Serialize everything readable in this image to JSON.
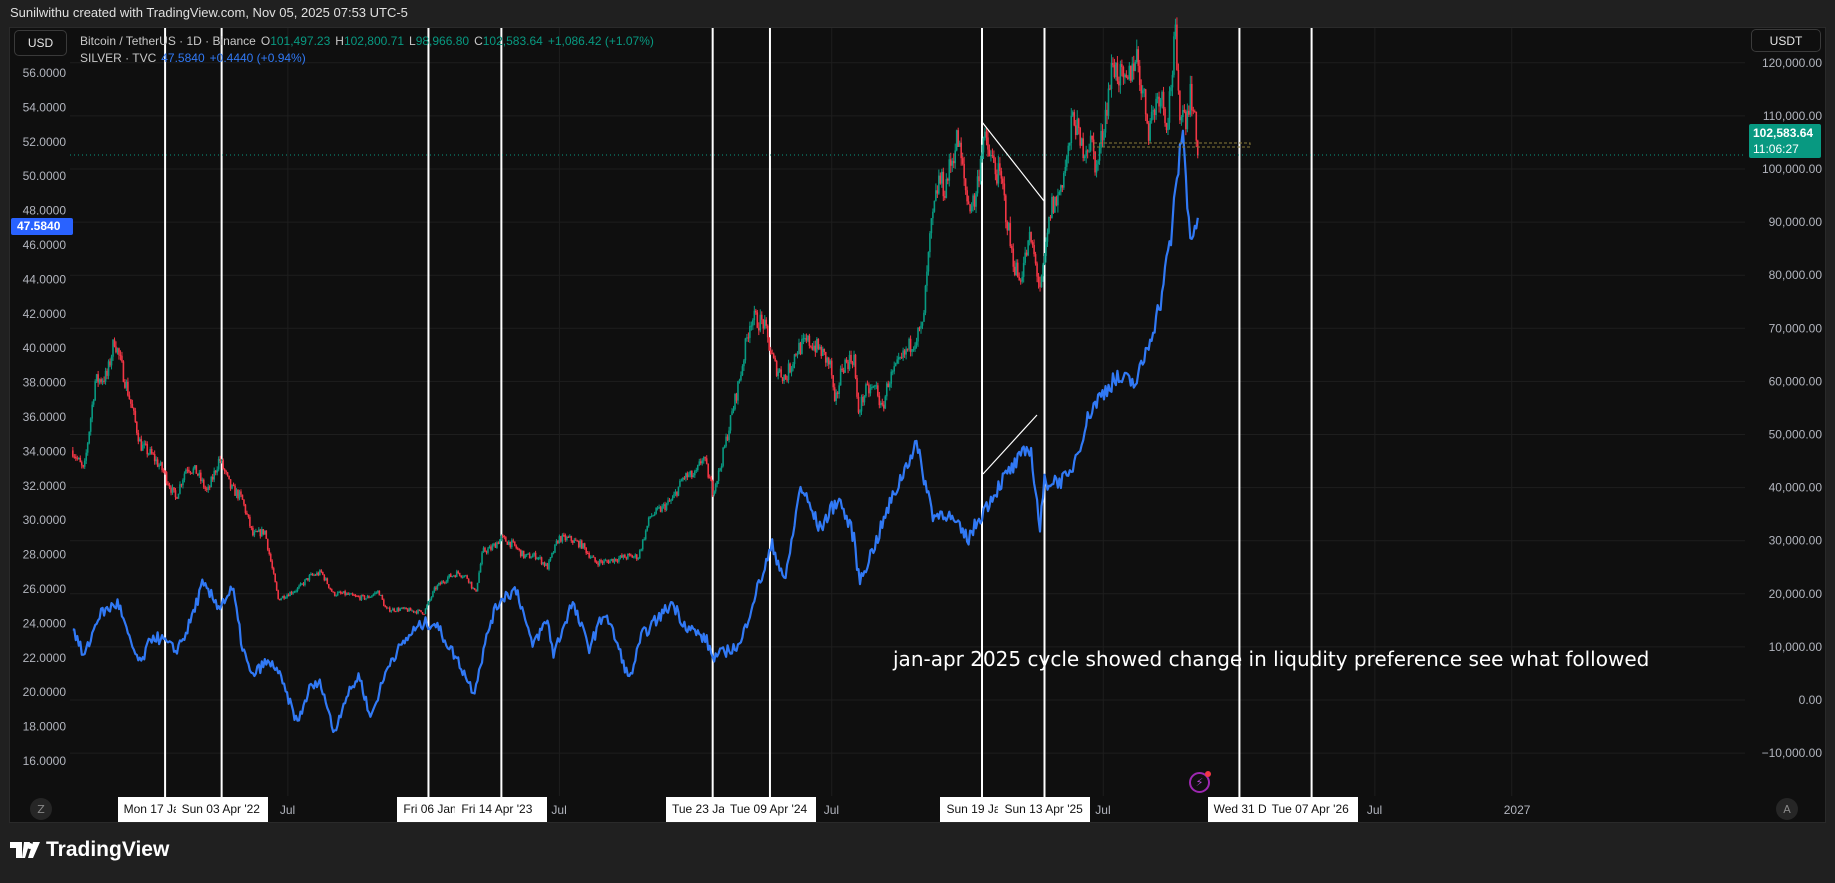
{
  "header": {
    "caption": "Sunilwithu created with TradingView.com, Nov 05, 2025 07:53 UTC-5"
  },
  "left_scale": {
    "currency": "USD"
  },
  "right_scale": {
    "currency": "USDT"
  },
  "legend": {
    "btc": {
      "name": "Bitcoin / TetherUS · 1D · Binance",
      "o_label": "O",
      "o": "101,497.23",
      "h_label": "H",
      "h": "102,800.71",
      "l_label": "L",
      "l": "98,966.80",
      "c_label": "C",
      "c": "102,583.64",
      "change": "+1,086.42 (+1.07%)"
    },
    "silver": {
      "name": "SILVER · TVC",
      "value": "47.5840",
      "change": "+0.4440 (+0.94%)"
    }
  },
  "price_labels": {
    "btc_last": "102,583.64",
    "btc_countdown": "11:06:27",
    "silver_last": "47.5840"
  },
  "annotation": "jan-apr 2025 cycle showed change in liqudity preference see what followed",
  "time_axis": {
    "marker_labels": [
      "Mon 17 Ja",
      "Sun 03 Apr '22",
      "Fri 06 Jan '2",
      "Fri 14 Apr '23",
      "Tue 23 Ja",
      "Tue 09 Apr '24",
      "Sun 19 Jar",
      "Sun 13 Apr '25",
      "Wed 31 Dec",
      "Tue 07 Apr '26"
    ],
    "ticks": [
      "Jul",
      "Jul",
      "Jul",
      "Jul",
      "Jul",
      "2027"
    ]
  },
  "buttons": {
    "auto_scale": "A",
    "timezone": "Z"
  },
  "footer": {
    "brand": "TradingView"
  },
  "colors": {
    "up": "#089981",
    "down": "#f23645",
    "silver": "#3179f5",
    "marker_lines": "#ffffff",
    "last_price_badge": "#089981",
    "silver_badge": "#2962ff",
    "event_icon": "#9c27b0"
  },
  "chart_data": [
    {
      "type": "candlestick+line",
      "x_axis": "date",
      "left_axis": {
        "series": "SILVER · TVC",
        "unit": "USD",
        "ticks": [
          "56.0000",
          "54.0000",
          "52.0000",
          "50.0000",
          "48.0000",
          "46.0000",
          "44.0000",
          "42.0000",
          "40.0000",
          "38.0000",
          "36.0000",
          "34.0000",
          "32.0000",
          "30.0000",
          "28.0000",
          "26.0000",
          "24.0000",
          "22.0000",
          "20.0000",
          "18.0000",
          "16.0000"
        ],
        "range": [
          14.5,
          57.5
        ]
      },
      "right_axis": {
        "series": "Bitcoin / TetherUS",
        "unit": "USDT",
        "ticks": [
          "120,000.00",
          "110,000.00",
          "100,000.00",
          "90,000.00",
          "80,000.00",
          "70,000.00",
          "60,000.00",
          "50,000.00",
          "40,000.00",
          "30,000.00",
          "20,000.00",
          "10,000.00",
          "0.00",
          "−10,000.00"
        ],
        "range": [
          -17000,
          126000
        ]
      },
      "grid": true,
      "marker_dates": [
        "2022-01-17",
        "2022-04-03",
        "2023-01-06",
        "2023-04-14",
        "2024-01-23",
        "2024-04-09",
        "2025-01-19",
        "2025-04-13",
        "2025-12-31",
        "2026-04-07"
      ],
      "tick_dates": [
        "2022-07-01",
        "2023-07-01",
        "2024-07-01",
        "2025-07-01",
        "2026-07-01",
        "2027-01-01"
      ],
      "btc": [
        [
          "2021-09-15",
          47000
        ],
        [
          "2021-09-30",
          43000
        ],
        [
          "2021-10-15",
          60000
        ],
        [
          "2021-10-31",
          61000
        ],
        [
          "2021-11-10",
          68000
        ],
        [
          "2021-11-30",
          57000
        ],
        [
          "2021-12-15",
          48000
        ],
        [
          "2021-12-31",
          46000
        ],
        [
          "2022-01-15",
          43000
        ],
        [
          "2022-01-31",
          38000
        ],
        [
          "2022-02-15",
          44000
        ],
        [
          "2022-02-28",
          43000
        ],
        [
          "2022-03-15",
          39000
        ],
        [
          "2022-03-31",
          45500
        ],
        [
          "2022-04-15",
          40000
        ],
        [
          "2022-04-30",
          38000
        ],
        [
          "2022-05-15",
          31000
        ],
        [
          "2022-05-31",
          31800
        ],
        [
          "2022-06-18",
          19000
        ],
        [
          "2022-06-30",
          19900
        ],
        [
          "2022-07-15",
          21000
        ],
        [
          "2022-07-31",
          23300
        ],
        [
          "2022-08-15",
          24000
        ],
        [
          "2022-08-31",
          20000
        ],
        [
          "2022-09-15",
          20000
        ],
        [
          "2022-09-30",
          19400
        ],
        [
          "2022-10-15",
          19200
        ],
        [
          "2022-10-31",
          20500
        ],
        [
          "2022-11-10",
          17000
        ],
        [
          "2022-11-30",
          17100
        ],
        [
          "2022-12-31",
          16500
        ],
        [
          "2023-01-15",
          21000
        ],
        [
          "2023-01-31",
          23000
        ],
        [
          "2023-02-15",
          24000
        ],
        [
          "2023-02-28",
          23000
        ],
        [
          "2023-03-10",
          20000
        ],
        [
          "2023-03-20",
          28000
        ],
        [
          "2023-03-31",
          28500
        ],
        [
          "2023-04-14",
          30500
        ],
        [
          "2023-04-30",
          29200
        ],
        [
          "2023-05-15",
          27000
        ],
        [
          "2023-05-31",
          27200
        ],
        [
          "2023-06-15",
          25000
        ],
        [
          "2023-06-30",
          30500
        ],
        [
          "2023-07-15",
          30300
        ],
        [
          "2023-07-31",
          29200
        ],
        [
          "2023-08-18",
          26000
        ],
        [
          "2023-08-31",
          26000
        ],
        [
          "2023-09-15",
          26600
        ],
        [
          "2023-09-30",
          27000
        ],
        [
          "2023-10-15",
          27000
        ],
        [
          "2023-10-31",
          34600
        ],
        [
          "2023-11-15",
          36000
        ],
        [
          "2023-11-30",
          37700
        ],
        [
          "2023-12-15",
          42000
        ],
        [
          "2023-12-31",
          42300
        ],
        [
          "2024-01-10",
          46000
        ],
        [
          "2024-01-23",
          39500
        ],
        [
          "2024-01-31",
          42600
        ],
        [
          "2024-02-15",
          52000
        ],
        [
          "2024-02-29",
          61000
        ],
        [
          "2024-03-14",
          72000
        ],
        [
          "2024-03-31",
          71000
        ],
        [
          "2024-04-15",
          63000
        ],
        [
          "2024-04-30",
          60600
        ],
        [
          "2024-05-15",
          66000
        ],
        [
          "2024-05-31",
          67500
        ],
        [
          "2024-06-15",
          66000
        ],
        [
          "2024-06-30",
          62700
        ],
        [
          "2024-07-05",
          55000
        ],
        [
          "2024-07-15",
          63000
        ],
        [
          "2024-07-31",
          64600
        ],
        [
          "2024-08-05",
          54000
        ],
        [
          "2024-08-15",
          58000
        ],
        [
          "2024-08-31",
          58900
        ],
        [
          "2024-09-06",
          54000
        ],
        [
          "2024-09-15",
          60000
        ],
        [
          "2024-09-30",
          63300
        ],
        [
          "2024-10-15",
          67000
        ],
        [
          "2024-10-31",
          70000
        ],
        [
          "2024-11-11",
          88000
        ],
        [
          "2024-11-22",
          98000
        ],
        [
          "2024-11-30",
          96400
        ],
        [
          "2024-12-17",
          106000
        ],
        [
          "2024-12-31",
          93400
        ],
        [
          "2025-01-10",
          94000
        ],
        [
          "2025-01-20",
          106000
        ],
        [
          "2025-01-31",
          102000
        ],
        [
          "2025-02-15",
          97000
        ],
        [
          "2025-02-28",
          84000
        ],
        [
          "2025-03-10",
          79000
        ],
        [
          "2025-03-25",
          87000
        ],
        [
          "2025-04-08",
          77000
        ],
        [
          "2025-04-22",
          93000
        ],
        [
          "2025-04-30",
          94000
        ],
        [
          "2025-05-15",
          103000
        ],
        [
          "2025-05-22",
          111000
        ],
        [
          "2025-05-31",
          104000
        ],
        [
          "2025-06-15",
          105000
        ],
        [
          "2025-06-22",
          100000
        ],
        [
          "2025-06-30",
          107000
        ],
        [
          "2025-07-14",
          120000
        ],
        [
          "2025-07-31",
          115000
        ],
        [
          "2025-08-14",
          122000
        ],
        [
          "2025-08-31",
          108000
        ],
        [
          "2025-09-15",
          115000
        ],
        [
          "2025-09-25",
          109000
        ],
        [
          "2025-10-06",
          125000
        ],
        [
          "2025-10-10",
          112000
        ],
        [
          "2025-10-20",
          110000
        ],
        [
          "2025-10-27",
          115000
        ],
        [
          "2025-11-05",
          102583.64
        ]
      ],
      "silver": [
        [
          "2021-09-15",
          23.8
        ],
        [
          "2021-09-30",
          22.0
        ],
        [
          "2021-10-20",
          24.5
        ],
        [
          "2021-11-15",
          25.2
        ],
        [
          "2021-11-30",
          23.0
        ],
        [
          "2021-12-15",
          21.6
        ],
        [
          "2021-12-31",
          23.3
        ],
        [
          "2022-01-15",
          23.0
        ],
        [
          "2022-01-31",
          22.4
        ],
        [
          "2022-02-15",
          23.5
        ],
        [
          "2022-03-08",
          26.2
        ],
        [
          "2022-03-31",
          25.0
        ],
        [
          "2022-04-18",
          26.0
        ],
        [
          "2022-04-30",
          22.8
        ],
        [
          "2022-05-13",
          20.9
        ],
        [
          "2022-05-31",
          21.7
        ],
        [
          "2022-06-15",
          21.5
        ],
        [
          "2022-07-14",
          18.2
        ],
        [
          "2022-07-31",
          20.3
        ],
        [
          "2022-08-15",
          20.5
        ],
        [
          "2022-09-01",
          17.6
        ],
        [
          "2022-09-15",
          19.5
        ],
        [
          "2022-10-05",
          21.0
        ],
        [
          "2022-10-20",
          18.5
        ],
        [
          "2022-11-15",
          21.8
        ],
        [
          "2022-12-15",
          23.5
        ],
        [
          "2022-12-31",
          24.0
        ],
        [
          "2023-01-15",
          24.0
        ],
        [
          "2023-02-15",
          21.8
        ],
        [
          "2023-03-08",
          20.0
        ],
        [
          "2023-03-31",
          24.2
        ],
        [
          "2023-04-14",
          25.5
        ],
        [
          "2023-05-05",
          26.0
        ],
        [
          "2023-05-25",
          22.7
        ],
        [
          "2023-06-15",
          24.2
        ],
        [
          "2023-06-23",
          22.2
        ],
        [
          "2023-07-18",
          25.2
        ],
        [
          "2023-08-10",
          22.6
        ],
        [
          "2023-08-31",
          24.7
        ],
        [
          "2023-09-15",
          23.0
        ],
        [
          "2023-10-03",
          20.7
        ],
        [
          "2023-10-20",
          23.3
        ],
        [
          "2023-11-30",
          25.2
        ],
        [
          "2023-12-15",
          24.0
        ],
        [
          "2024-01-15",
          23.0
        ],
        [
          "2024-01-23",
          22.0
        ],
        [
          "2024-02-15",
          22.5
        ],
        [
          "2024-02-29",
          22.7
        ],
        [
          "2024-03-15",
          25.0
        ],
        [
          "2024-04-12",
          28.5
        ],
        [
          "2024-04-30",
          26.5
        ],
        [
          "2024-05-20",
          32.0
        ],
        [
          "2024-06-15",
          29.5
        ],
        [
          "2024-07-10",
          31.3
        ],
        [
          "2024-07-31",
          29.0
        ],
        [
          "2024-08-07",
          26.4
        ],
        [
          "2024-08-31",
          28.9
        ],
        [
          "2024-09-15",
          30.7
        ],
        [
          "2024-10-22",
          34.5
        ],
        [
          "2024-11-15",
          30.2
        ],
        [
          "2024-11-30",
          30.5
        ],
        [
          "2024-12-31",
          28.9
        ],
        [
          "2025-01-19",
          30.4
        ],
        [
          "2025-02-15",
          32.3
        ],
        [
          "2025-03-25",
          34.3
        ],
        [
          "2025-04-07",
          29.5
        ],
        [
          "2025-04-13",
          32.2
        ],
        [
          "2025-05-15",
          32.4
        ],
        [
          "2025-06-15",
          36.5
        ],
        [
          "2025-07-15",
          38.2
        ],
        [
          "2025-08-15",
          38.0
        ],
        [
          "2025-09-15",
          42.5
        ],
        [
          "2025-09-30",
          46.5
        ],
        [
          "2025-10-16",
          53.0
        ],
        [
          "2025-10-22",
          48.0
        ],
        [
          "2025-10-28",
          46.5
        ],
        [
          "2025-11-05",
          47.584
        ]
      ]
    }
  ]
}
